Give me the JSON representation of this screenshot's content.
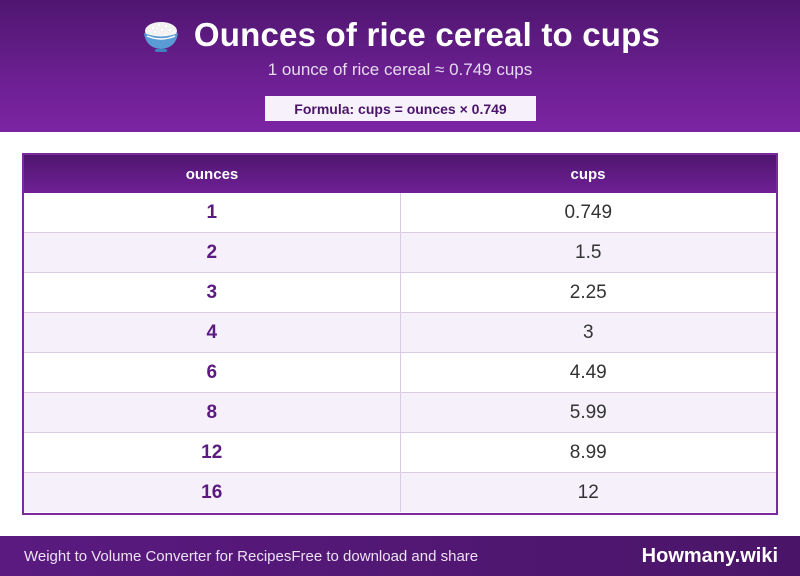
{
  "header": {
    "icon": "rice-bowl-icon",
    "title": "Ounces of rice cereal to cups",
    "subtitle": "1 ounce of rice cereal ≈ 0.749 cups",
    "formula": "Formula: cups = ounces × 0.749"
  },
  "table": {
    "columns": [
      "ounces",
      "cups"
    ],
    "rows": [
      [
        "1",
        "0.749"
      ],
      [
        "2",
        "1.5"
      ],
      [
        "3",
        "2.25"
      ],
      [
        "4",
        "3"
      ],
      [
        "6",
        "4.49"
      ],
      [
        "8",
        "5.99"
      ],
      [
        "12",
        "8.99"
      ],
      [
        "16",
        "12"
      ]
    ]
  },
  "footer": {
    "left_title": "Weight to Volume Converter for Recipes",
    "left_sub": "Free to download and share",
    "brand": "Howmany.wiki"
  },
  "colors": {
    "header_purple": "#6a1f8f",
    "accent_dark": "#4a1568",
    "row_alt": "#f5f0fa"
  }
}
